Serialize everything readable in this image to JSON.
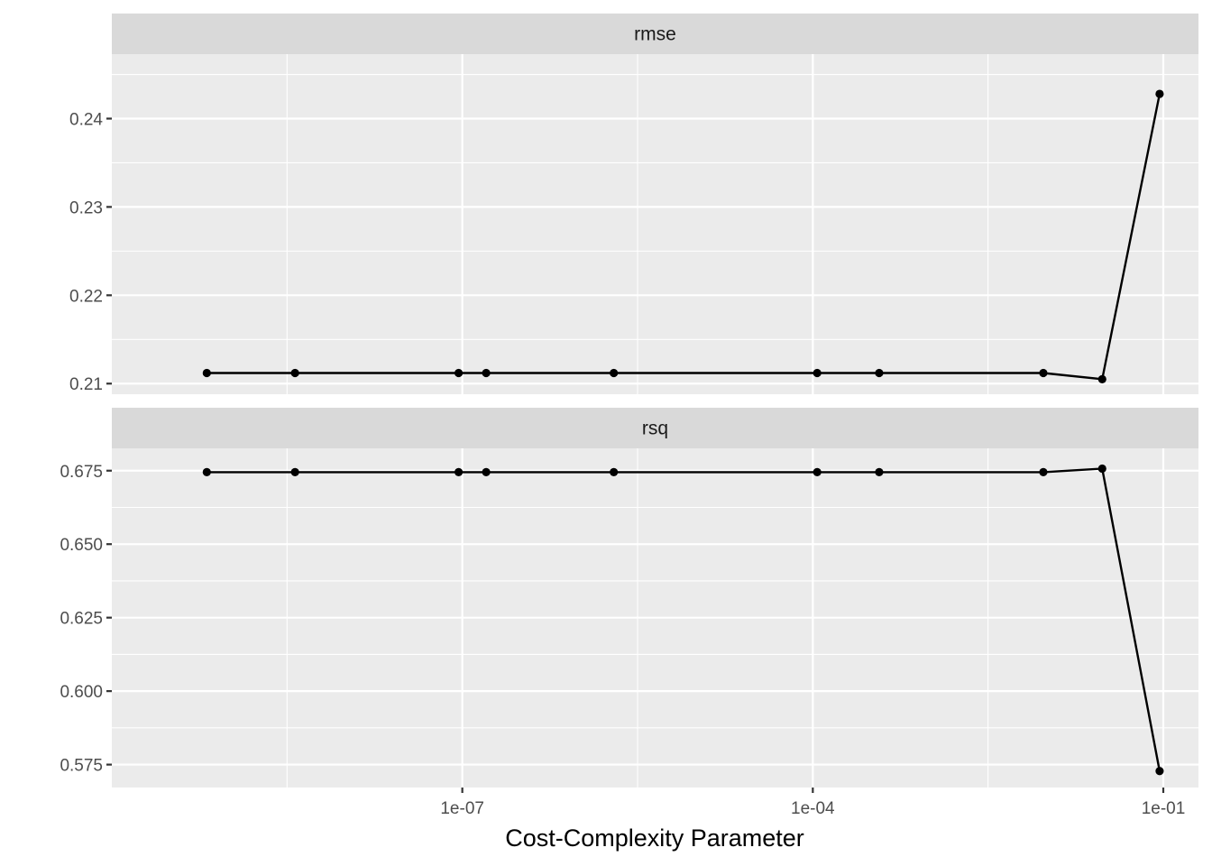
{
  "chart_data": {
    "type": "line",
    "facet_by": "metric",
    "xlabel": "Cost-Complexity Parameter",
    "xscale": "log10",
    "xlim": [
      1e-10,
      0.2
    ],
    "x_ticks": [
      1e-07,
      0.0001,
      0.1
    ],
    "x_tick_labels": [
      "1e-07",
      "1e-04",
      "1e-01"
    ],
    "x_minor_ticks": [
      3.16e-09,
      3.16e-06,
      0.00316
    ],
    "x": [
      6.5e-10,
      3.7e-09,
      9.3e-08,
      1.6e-07,
      1.98e-06,
      0.000109,
      0.00037,
      0.0094,
      0.03,
      0.093
    ],
    "grid": true,
    "legend": "none",
    "panels": [
      {
        "strip_label": "rmse",
        "ylim": [
          0.2088,
          0.2473
        ],
        "y_ticks": [
          0.21,
          0.22,
          0.23,
          0.24
        ],
        "y_tick_labels": [
          "0.21",
          "0.22",
          "0.23",
          "0.24"
        ],
        "y_minor_ticks": [
          0.215,
          0.225,
          0.235,
          0.245
        ],
        "values": [
          0.2112,
          0.2112,
          0.2112,
          0.2112,
          0.2112,
          0.2112,
          0.2112,
          0.2112,
          0.2105,
          0.2428
        ]
      },
      {
        "strip_label": "rsq",
        "ylim": [
          0.5672,
          0.6826
        ],
        "y_ticks": [
          0.575,
          0.6,
          0.625,
          0.65,
          0.675
        ],
        "y_tick_labels": [
          "0.575",
          "0.600",
          "0.625",
          "0.650",
          "0.675"
        ],
        "y_minor_ticks": [
          0.5875,
          0.6125,
          0.6375,
          0.6625
        ],
        "values": [
          0.6745,
          0.6745,
          0.6745,
          0.6745,
          0.6745,
          0.6745,
          0.6745,
          0.6745,
          0.6757,
          0.5728
        ]
      }
    ]
  }
}
